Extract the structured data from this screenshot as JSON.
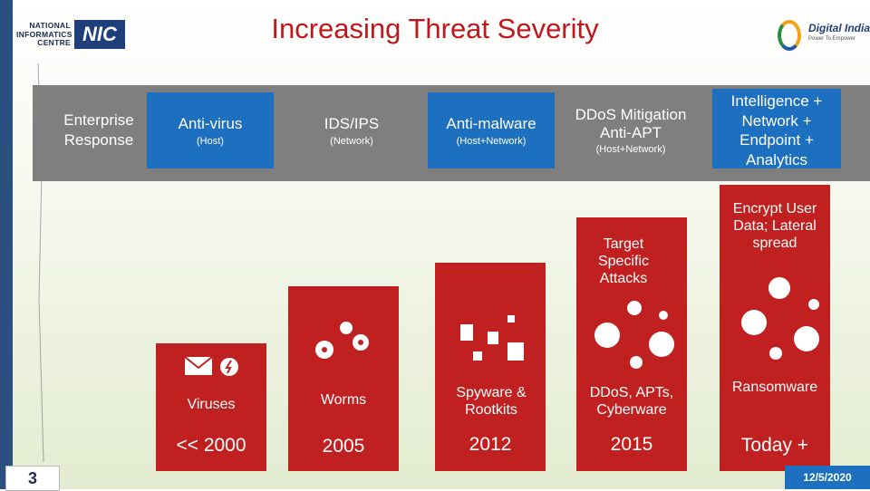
{
  "title": "Increasing Threat Severity",
  "logos": {
    "nic_text": "NATIONAL INFORMATICS CENTRE",
    "nic_mark": "NIC",
    "digital_india": "Digital India",
    "digital_india_tagline": "Power To Empower"
  },
  "band": {
    "label": "Enterprise Response",
    "columns": [
      {
        "heading": "Anti-virus",
        "sub": "(Host)"
      },
      {
        "heading": "IDS/IPS",
        "sub": "(Network)"
      },
      {
        "heading": "Anti-malware",
        "sub": "(Host+Network)"
      },
      {
        "heading": "DDoS Mitigation Anti-APT",
        "sub": "(Host+Network)"
      },
      {
        "heading": "Intelligence + Network + Endpoint + Analytics",
        "sub": ""
      }
    ]
  },
  "threats": [
    {
      "label": "Viruses",
      "year": "<< 2000",
      "level": 1
    },
    {
      "label": "Worms",
      "year": "2005",
      "level": 2
    },
    {
      "label": "Spyware & Rootkits",
      "year": "2012",
      "level": 3
    },
    {
      "label": "DDoS, APTs, Cyberware",
      "year": "2015",
      "level": 4,
      "top_note": "Target Specific Attacks"
    },
    {
      "label": "Ransomware",
      "year": "Today +",
      "level": 5,
      "top_note": "Encrypt User Data; Lateral spread"
    }
  ],
  "icons": [
    "envelope-icon",
    "bug-icon",
    "spy-icon",
    "virus-icon"
  ],
  "footer": {
    "page": "3",
    "date": "12/5/2020"
  },
  "colors": {
    "title": "#c0171c",
    "bar": "#c0201f",
    "band": "#7f7f7f",
    "blue": "#1d6fc0"
  }
}
